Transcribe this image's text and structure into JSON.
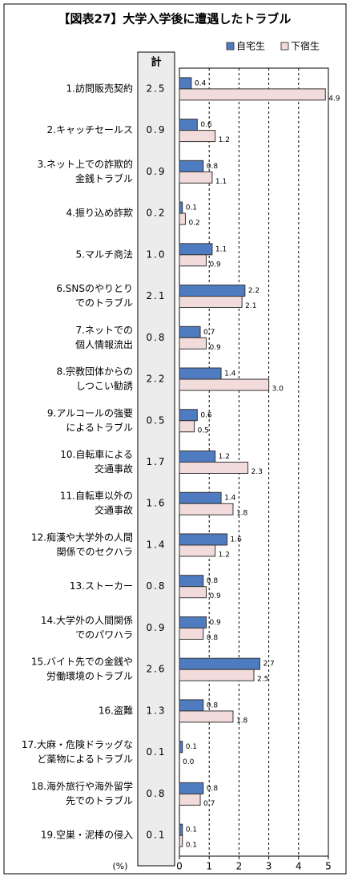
{
  "chart_data": {
    "type": "bar",
    "orientation": "horizontal",
    "title": "【図表27】大学入学後に遭遇したトラブル",
    "categories": [
      [
        "1.訪問販売契約"
      ],
      [
        "2.キャッチセールス"
      ],
      [
        "3.ネット上での詐欺的",
        "金銭トラブル"
      ],
      [
        "4.振り込め詐欺"
      ],
      [
        "5.マルチ商法"
      ],
      [
        "6.SNSのやりとり",
        "でのトラブル"
      ],
      [
        "7.ネットでの",
        "個人情報流出"
      ],
      [
        "8.宗教団体からの",
        "しつこい勧誘"
      ],
      [
        "9.アルコールの強要",
        "によるトラブル"
      ],
      [
        "10.自転車による",
        "交通事故"
      ],
      [
        "11.自転車以外の",
        "交通事故"
      ],
      [
        "12.痴漢や大学外の人間",
        "関係でのセクハラ"
      ],
      [
        "13.ストーカー"
      ],
      [
        "14.大学外の人間関係",
        "でのパワハラ"
      ],
      [
        "15.バイト先での金銭や",
        "労働環境のトラブル"
      ],
      [
        "16.盗難"
      ],
      [
        "17.大麻・危険ドラッグな",
        "ど薬物によるトラブル"
      ],
      [
        "18.海外旅行や海外留学",
        "先でのトラブル"
      ],
      [
        "19.空巣・泥棒の侵入"
      ]
    ],
    "total": {
      "name": "計",
      "values": [
        2.5,
        0.9,
        0.9,
        0.2,
        1,
        2.1,
        0.8,
        2.2,
        0.5,
        1.7,
        1.6,
        1.4,
        0.8,
        0.9,
        2.6,
        1.3,
        0.1,
        0.8,
        0.1
      ],
      "value_labels": [
        "2.5",
        "0.9",
        "0.9",
        "0.2",
        "1.0",
        "2.1",
        "0.8",
        "2.2",
        "0.5",
        "1.7",
        "1.6",
        "1.4",
        "0.8",
        "0.9",
        "2.6",
        "1.3",
        "0.1",
        "0.8",
        "0.1"
      ]
    },
    "series": [
      {
        "name": "自宅生",
        "color": "#4f7cc0",
        "values": [
          0.4,
          0.6,
          0.8,
          0.1,
          1.1,
          2.2,
          0.7,
          1.4,
          0.6,
          1.2,
          1.4,
          1.6,
          0.8,
          0.9,
          2.7,
          0.8,
          0.1,
          0.8,
          0.1
        ],
        "value_labels": [
          "0.4",
          "0.6",
          "0.8",
          "0.1",
          "1.1",
          "2.2",
          "0.7",
          "1.4",
          "0.6",
          "1.2",
          "1.4",
          "1.6",
          "0.8",
          "0.9",
          "2.7",
          "0.8",
          "0.1",
          "0.8",
          "0.1"
        ]
      },
      {
        "name": "下宿生",
        "color": "#f2dcdb",
        "values": [
          4.9,
          1.2,
          1.1,
          0.2,
          0.9,
          2.1,
          0.9,
          3,
          0.5,
          2.3,
          1.8,
          1.2,
          0.9,
          0.8,
          2.5,
          1.8,
          0,
          0.7,
          0.1
        ],
        "value_labels": [
          "4.9",
          "1.2",
          "1.1",
          "0.2",
          "0.9",
          "2.1",
          "0.9",
          "3.0",
          "0.5",
          "2.3",
          "1.8",
          "1.2",
          "0.9",
          "0.8",
          "2.5",
          "1.8",
          "0.0",
          "0.7",
          "0.1"
        ]
      }
    ],
    "xlabel": "(%)",
    "xlim": [
      0,
      5
    ],
    "xticks": [
      0,
      1,
      2,
      3,
      4,
      5
    ],
    "grid": true,
    "legend": "top-right"
  }
}
